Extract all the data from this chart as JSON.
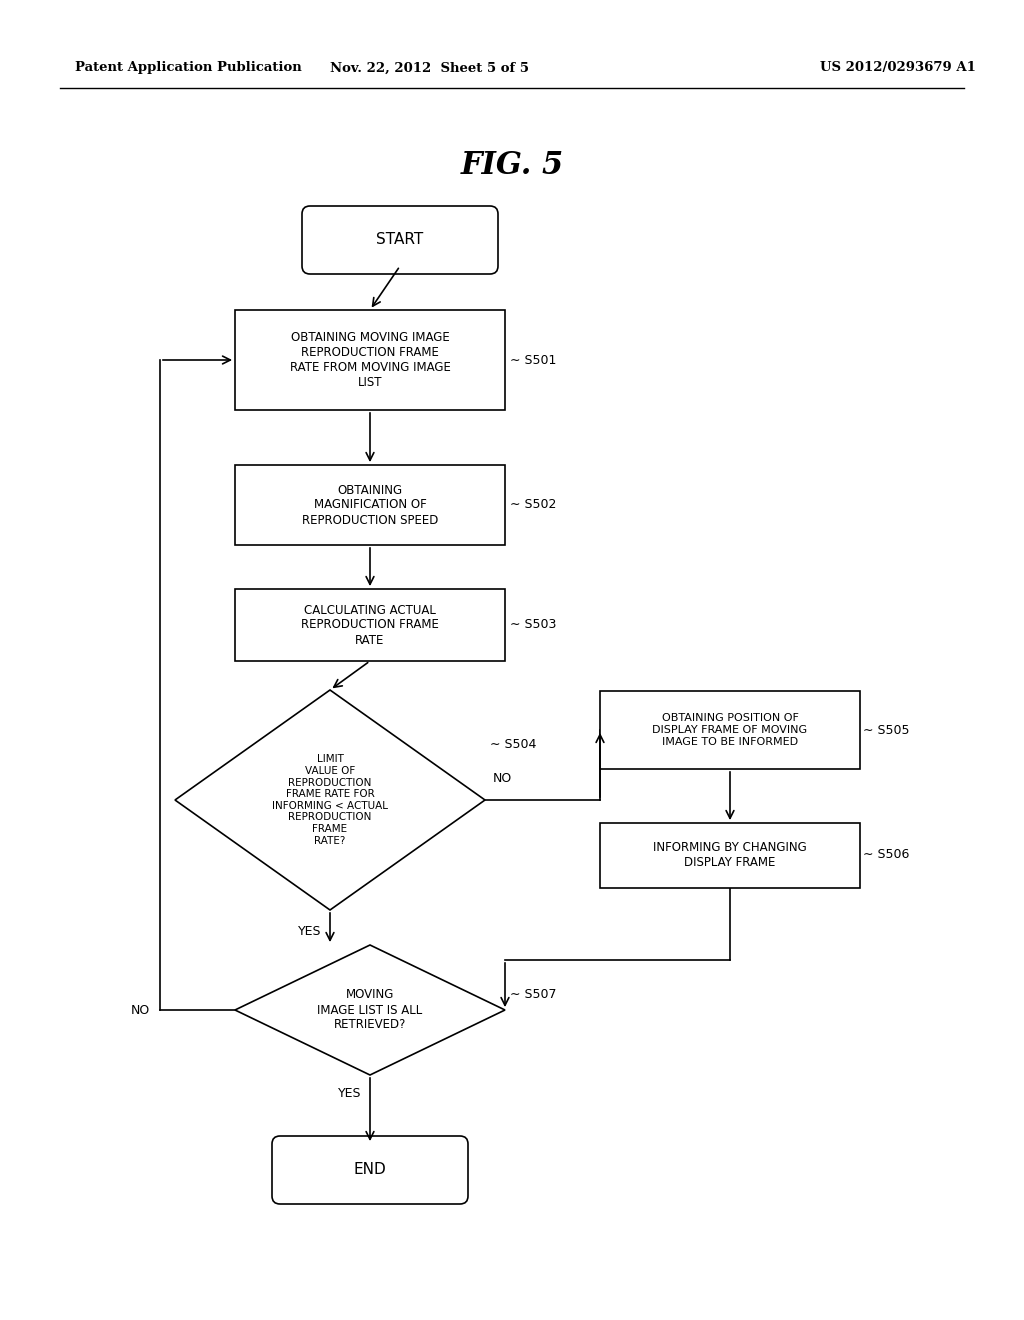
{
  "header_left": "Patent Application Publication",
  "header_mid": "Nov. 22, 2012  Sheet 5 of 5",
  "header_right": "US 2012/0293679 A1",
  "fig_title": "FIG. 5",
  "bg_color": "#ffffff",
  "text_color": "#000000",
  "lw": 1.2
}
